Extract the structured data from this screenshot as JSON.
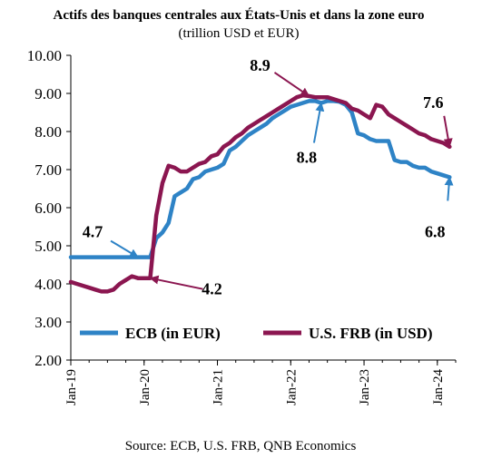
{
  "chart_data": {
    "type": "line",
    "title": "Actifs des banques centrales aux États-Unis et dans la zone euro",
    "subtitle": "(trillion USD et EUR)",
    "source": "Source: ECB, U.S. FRB, QNB Economics",
    "ylim": [
      2.0,
      10.0
    ],
    "y_ticks": [
      "2.00",
      "3.00",
      "4.00",
      "5.00",
      "6.00",
      "7.00",
      "8.00",
      "9.00",
      "10.00"
    ],
    "x_ticks": [
      "Jan-19",
      "Jan-20",
      "Jan-21",
      "Jan-22",
      "Jan-23",
      "Jan-24"
    ],
    "x_range": [
      "2019-01",
      "2024-04"
    ],
    "grid": false,
    "legend_placement": "bottom-left",
    "series": [
      {
        "name": "ECB (in EUR)",
        "color": "#2e83c6",
        "x": [
          "2019-01",
          "2019-02",
          "2019-03",
          "2019-04",
          "2019-05",
          "2019-06",
          "2019-07",
          "2019-08",
          "2019-09",
          "2019-10",
          "2019-11",
          "2019-12",
          "2020-01",
          "2020-02",
          "2020-03",
          "2020-04",
          "2020-05",
          "2020-06",
          "2020-07",
          "2020-08",
          "2020-09",
          "2020-10",
          "2020-11",
          "2020-12",
          "2021-01",
          "2021-02",
          "2021-03",
          "2021-04",
          "2021-05",
          "2021-06",
          "2021-07",
          "2021-08",
          "2021-09",
          "2021-10",
          "2021-11",
          "2021-12",
          "2022-01",
          "2022-02",
          "2022-03",
          "2022-04",
          "2022-05",
          "2022-06",
          "2022-07",
          "2022-08",
          "2022-09",
          "2022-10",
          "2022-11",
          "2022-12",
          "2023-01",
          "2023-02",
          "2023-03",
          "2023-04",
          "2023-05",
          "2023-06",
          "2023-07",
          "2023-08",
          "2023-09",
          "2023-10",
          "2023-11",
          "2023-12",
          "2024-01",
          "2024-02",
          "2024-03"
        ],
        "values": [
          4.7,
          4.7,
          4.7,
          4.7,
          4.7,
          4.7,
          4.7,
          4.7,
          4.7,
          4.7,
          4.7,
          4.7,
          4.7,
          4.7,
          5.2,
          5.35,
          5.6,
          6.3,
          6.4,
          6.5,
          6.75,
          6.8,
          6.95,
          7.0,
          7.05,
          7.15,
          7.5,
          7.6,
          7.75,
          7.9,
          8.0,
          8.1,
          8.2,
          8.35,
          8.45,
          8.55,
          8.65,
          8.7,
          8.75,
          8.8,
          8.8,
          8.75,
          8.8,
          8.8,
          8.78,
          8.7,
          8.5,
          7.95,
          7.9,
          7.8,
          7.75,
          7.75,
          7.75,
          7.25,
          7.2,
          7.2,
          7.1,
          7.05,
          7.05,
          6.95,
          6.9,
          6.85,
          6.8
        ]
      },
      {
        "name": "U.S. FRB (in USD)",
        "color": "#8b1650",
        "x": [
          "2019-01",
          "2019-02",
          "2019-03",
          "2019-04",
          "2019-05",
          "2019-06",
          "2019-07",
          "2019-08",
          "2019-09",
          "2019-10",
          "2019-11",
          "2019-12",
          "2020-01",
          "2020-02",
          "2020-03",
          "2020-04",
          "2020-05",
          "2020-06",
          "2020-07",
          "2020-08",
          "2020-09",
          "2020-10",
          "2020-11",
          "2020-12",
          "2021-01",
          "2021-02",
          "2021-03",
          "2021-04",
          "2021-05",
          "2021-06",
          "2021-07",
          "2021-08",
          "2021-09",
          "2021-10",
          "2021-11",
          "2021-12",
          "2022-01",
          "2022-02",
          "2022-03",
          "2022-04",
          "2022-05",
          "2022-06",
          "2022-07",
          "2022-08",
          "2022-09",
          "2022-10",
          "2022-11",
          "2022-12",
          "2023-01",
          "2023-02",
          "2023-03",
          "2023-04",
          "2023-05",
          "2023-06",
          "2023-07",
          "2023-08",
          "2023-09",
          "2023-10",
          "2023-11",
          "2023-12",
          "2024-01",
          "2024-02",
          "2024-03"
        ],
        "values": [
          4.05,
          4.0,
          3.95,
          3.9,
          3.85,
          3.8,
          3.8,
          3.85,
          4.0,
          4.1,
          4.2,
          4.15,
          4.15,
          4.15,
          5.8,
          6.65,
          7.1,
          7.05,
          6.95,
          6.95,
          7.05,
          7.15,
          7.2,
          7.35,
          7.4,
          7.6,
          7.7,
          7.85,
          7.95,
          8.1,
          8.2,
          8.3,
          8.4,
          8.5,
          8.6,
          8.7,
          8.8,
          8.9,
          8.95,
          8.93,
          8.9,
          8.9,
          8.9,
          8.85,
          8.8,
          8.75,
          8.6,
          8.55,
          8.45,
          8.35,
          8.7,
          8.65,
          8.45,
          8.35,
          8.25,
          8.15,
          8.05,
          7.95,
          7.9,
          7.8,
          7.75,
          7.7,
          7.6
        ]
      }
    ],
    "annotations": [
      {
        "text": "4.7",
        "x": "2019-12",
        "y": 4.7,
        "series": "ECB (in EUR)"
      },
      {
        "text": "4.2",
        "x": "2020-02",
        "y": 4.15,
        "series": "U.S. FRB (in USD)"
      },
      {
        "text": "8.9",
        "x": "2022-04",
        "y": 8.93,
        "series": "U.S. FRB (in USD)"
      },
      {
        "text": "8.8",
        "x": "2022-06",
        "y": 8.75,
        "series": "ECB (in EUR)"
      },
      {
        "text": "7.6",
        "x": "2024-03",
        "y": 7.6,
        "series": "U.S. FRB (in USD)"
      },
      {
        "text": "6.8",
        "x": "2024-03",
        "y": 6.8,
        "series": "ECB (in EUR)"
      }
    ]
  }
}
